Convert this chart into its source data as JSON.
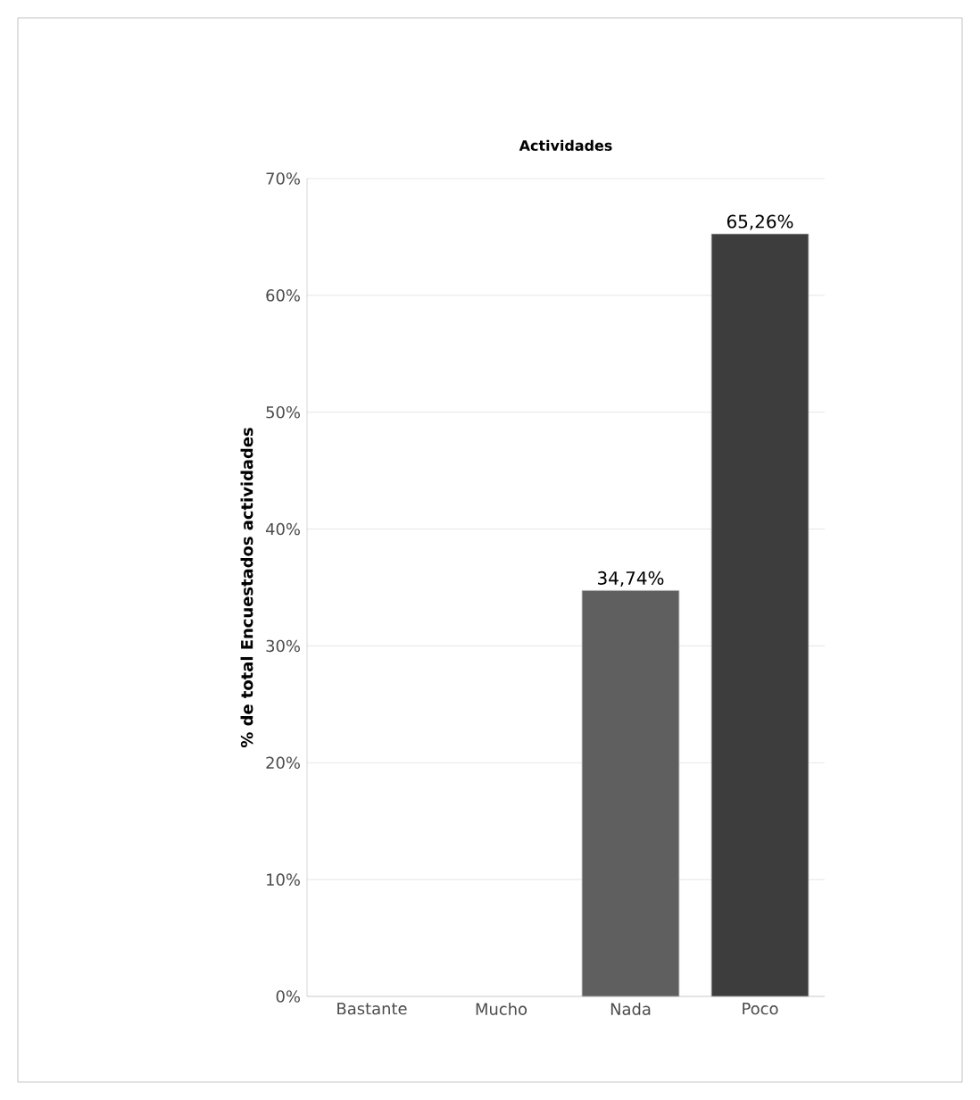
{
  "chart_data": {
    "type": "bar",
    "title": "Actividades",
    "ylabel": "% de total Encuestados actividades",
    "categories": [
      "Bastante",
      "Mucho",
      "Nada",
      "Poco"
    ],
    "values": [
      null,
      null,
      34.74,
      65.26
    ],
    "colors": [
      "#5f5f5f",
      "#5f5f5f",
      "#5f5f5f",
      "#3d3d3d"
    ],
    "value_labels": [
      null,
      null,
      "34,74%",
      "65,26%"
    ],
    "ylim": [
      0,
      70
    ],
    "yticks": [
      {
        "value": 0,
        "label": "0%"
      },
      {
        "value": 10,
        "label": "10%"
      },
      {
        "value": 20,
        "label": "20%"
      },
      {
        "value": 30,
        "label": "30%"
      },
      {
        "value": 40,
        "label": "40%"
      },
      {
        "value": 50,
        "label": "50%"
      },
      {
        "value": 60,
        "label": "60%"
      },
      {
        "value": 70,
        "label": "70%"
      }
    ],
    "grid": "y"
  }
}
